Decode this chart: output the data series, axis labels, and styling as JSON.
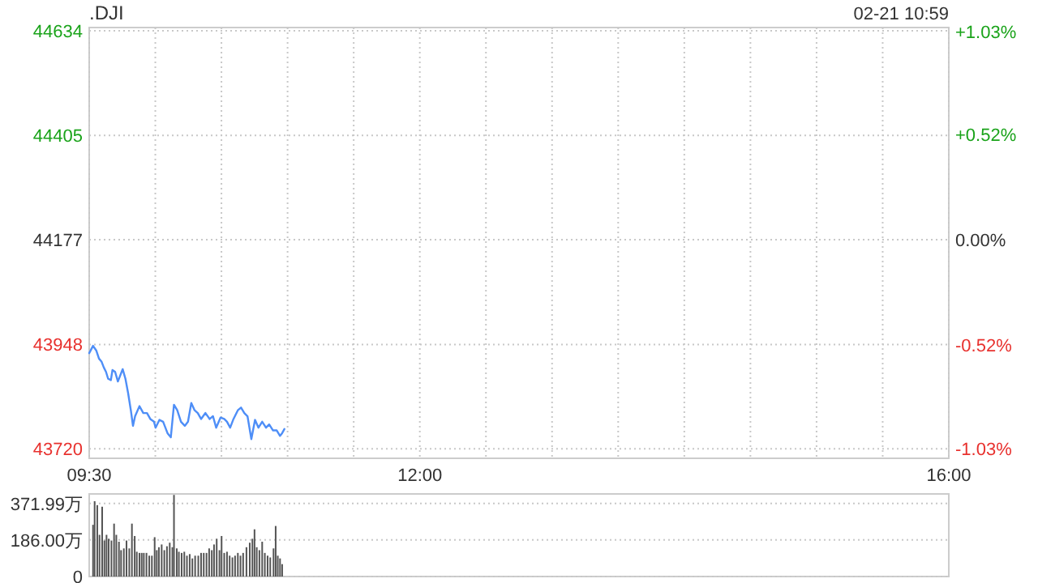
{
  "chart_data": [
    {
      "type": "line",
      "title": ".DJI",
      "annotations": [
        "02-21 10:59"
      ],
      "series": [
        {
          "color": "#4e8ef7",
          "x": [
            9.5,
            9.529,
            9.553,
            9.574,
            9.594,
            9.61,
            9.627,
            9.643,
            9.664,
            9.676,
            9.696,
            9.717,
            9.733,
            9.753,
            9.774,
            9.794,
            9.815,
            9.831,
            9.847,
            9.88,
            9.909,
            9.937,
            9.962,
            9.99,
            10.002,
            10.031,
            10.059,
            10.092,
            10.117,
            10.141,
            10.166,
            10.194,
            10.223,
            10.247,
            10.272,
            10.297,
            10.321,
            10.346,
            10.379,
            10.411,
            10.436,
            10.46,
            10.493,
            10.521,
            10.542,
            10.566,
            10.591,
            10.624,
            10.648,
            10.673,
            10.697,
            10.726,
            10.754,
            10.78,
            10.808,
            10.837,
            10.861,
            10.89,
            10.918,
            10.943,
            10.959,
            10.976
          ],
          "values": [
            43929,
            43945,
            43935,
            43917,
            43910,
            43898,
            43888,
            43873,
            43870,
            43892,
            43888,
            43867,
            43879,
            43894,
            43873,
            43842,
            43804,
            43770,
            43791,
            43813,
            43798,
            43798,
            43785,
            43779,
            43766,
            43783,
            43779,
            43754,
            43745,
            43816,
            43804,
            43779,
            43770,
            43779,
            43820,
            43804,
            43798,
            43785,
            43798,
            43785,
            43791,
            43766,
            43788,
            43785,
            43779,
            43766,
            43785,
            43804,
            43810,
            43798,
            43791,
            43741,
            43783,
            43766,
            43779,
            43766,
            43773,
            43760,
            43760,
            43748,
            43754,
            43763
          ]
        }
      ],
      "xlim": [
        9.5,
        16
      ],
      "xticks": [
        {
          "value": 9.5,
          "label": "09:30"
        },
        {
          "value": 10,
          "label": null
        },
        {
          "value": 10.5,
          "label": null
        },
        {
          "value": 11,
          "label": null
        },
        {
          "value": 11.5,
          "label": null
        },
        {
          "value": 12,
          "label": "12:00"
        },
        {
          "value": 12.5,
          "label": null
        },
        {
          "value": 13,
          "label": null
        },
        {
          "value": 13.5,
          "label": null
        },
        {
          "value": 14,
          "label": null
        },
        {
          "value": 14.5,
          "label": null
        },
        {
          "value": 15,
          "label": null
        },
        {
          "value": 15.5,
          "label": null
        },
        {
          "value": 16,
          "label": "16:00"
        }
      ],
      "ylim": [
        43699,
        44641
      ],
      "yticks": [
        43720,
        43948,
        44177,
        44405,
        44634
      ],
      "y2lim": [
        -1.08,
        1.05
      ],
      "y2ticks": [
        {
          "value": -1.03,
          "label": "-1.03%"
        },
        {
          "value": -0.52,
          "label": "-0.52%"
        },
        {
          "value": 0,
          "label": "0.00%"
        },
        {
          "value": 0.52,
          "label": "+0.52%"
        },
        {
          "value": 1.03,
          "label": "+1.03%"
        }
      ],
      "grid": true
    },
    {
      "type": "bar",
      "color": "#555555",
      "x": [
        9.529,
        9.541,
        9.561,
        9.578,
        9.598,
        9.615,
        9.631,
        9.647,
        9.668,
        9.688,
        9.705,
        9.725,
        9.741,
        9.762,
        9.782,
        9.803,
        9.823,
        9.844,
        9.86,
        9.88,
        9.897,
        9.913,
        9.933,
        9.954,
        9.974,
        9.995,
        10.011,
        10.027,
        10.048,
        10.068,
        10.088,
        10.109,
        10.129,
        10.141,
        10.162,
        10.178,
        10.199,
        10.219,
        10.239,
        10.26,
        10.28,
        10.301,
        10.325,
        10.346,
        10.366,
        10.387,
        10.407,
        10.427,
        10.444,
        10.464,
        10.485,
        10.501,
        10.521,
        10.542,
        10.562,
        10.583,
        10.603,
        10.624,
        10.644,
        10.664,
        10.689,
        10.714,
        10.734,
        10.75,
        10.767,
        10.787,
        10.808,
        10.828,
        10.849,
        10.869,
        10.894,
        10.91,
        10.926,
        10.943,
        10.959
      ],
      "values": [
        263,
        383,
        363,
        212,
        355,
        183,
        212,
        192,
        183,
        269,
        212,
        177,
        134,
        143,
        183,
        143,
        269,
        206,
        126,
        120,
        120,
        120,
        120,
        106,
        106,
        200,
        134,
        149,
        163,
        134,
        154,
        172,
        149,
        415,
        143,
        126,
        120,
        126,
        106,
        114,
        92,
        106,
        106,
        120,
        120,
        120,
        143,
        134,
        163,
        192,
        134,
        206,
        120,
        126,
        106,
        97,
        106,
        120,
        106,
        120,
        149,
        172,
        192,
        240,
        149,
        134,
        177,
        120,
        106,
        97,
        143,
        257,
        106,
        92,
        63
      ],
      "xlim": [
        9.5,
        16
      ],
      "ylim": [
        0,
        420
      ],
      "yticks": [
        0,
        {
          "value": 186,
          "label": "186.00万"
        },
        {
          "value": 371.99,
          "label": "371.99万"
        }
      ],
      "grid": "y",
      "tick_labels": "y"
    }
  ]
}
